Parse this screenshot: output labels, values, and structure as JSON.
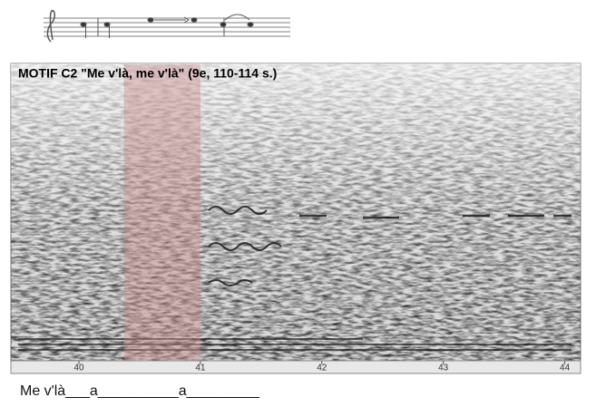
{
  "chart_data": {
    "type": "spectrogram",
    "title": "MOTIF C2 \"Me v'là, me v'là\" (9e, 110-114 s.)",
    "caption": "Me v'là___a__________a_________",
    "xlim": [
      39.44,
      44.13
    ],
    "xticks": [
      40,
      41,
      42,
      43,
      44
    ],
    "shaded_region": [
      40.37,
      41.0
    ],
    "shade_color": "#c98a8a"
  }
}
